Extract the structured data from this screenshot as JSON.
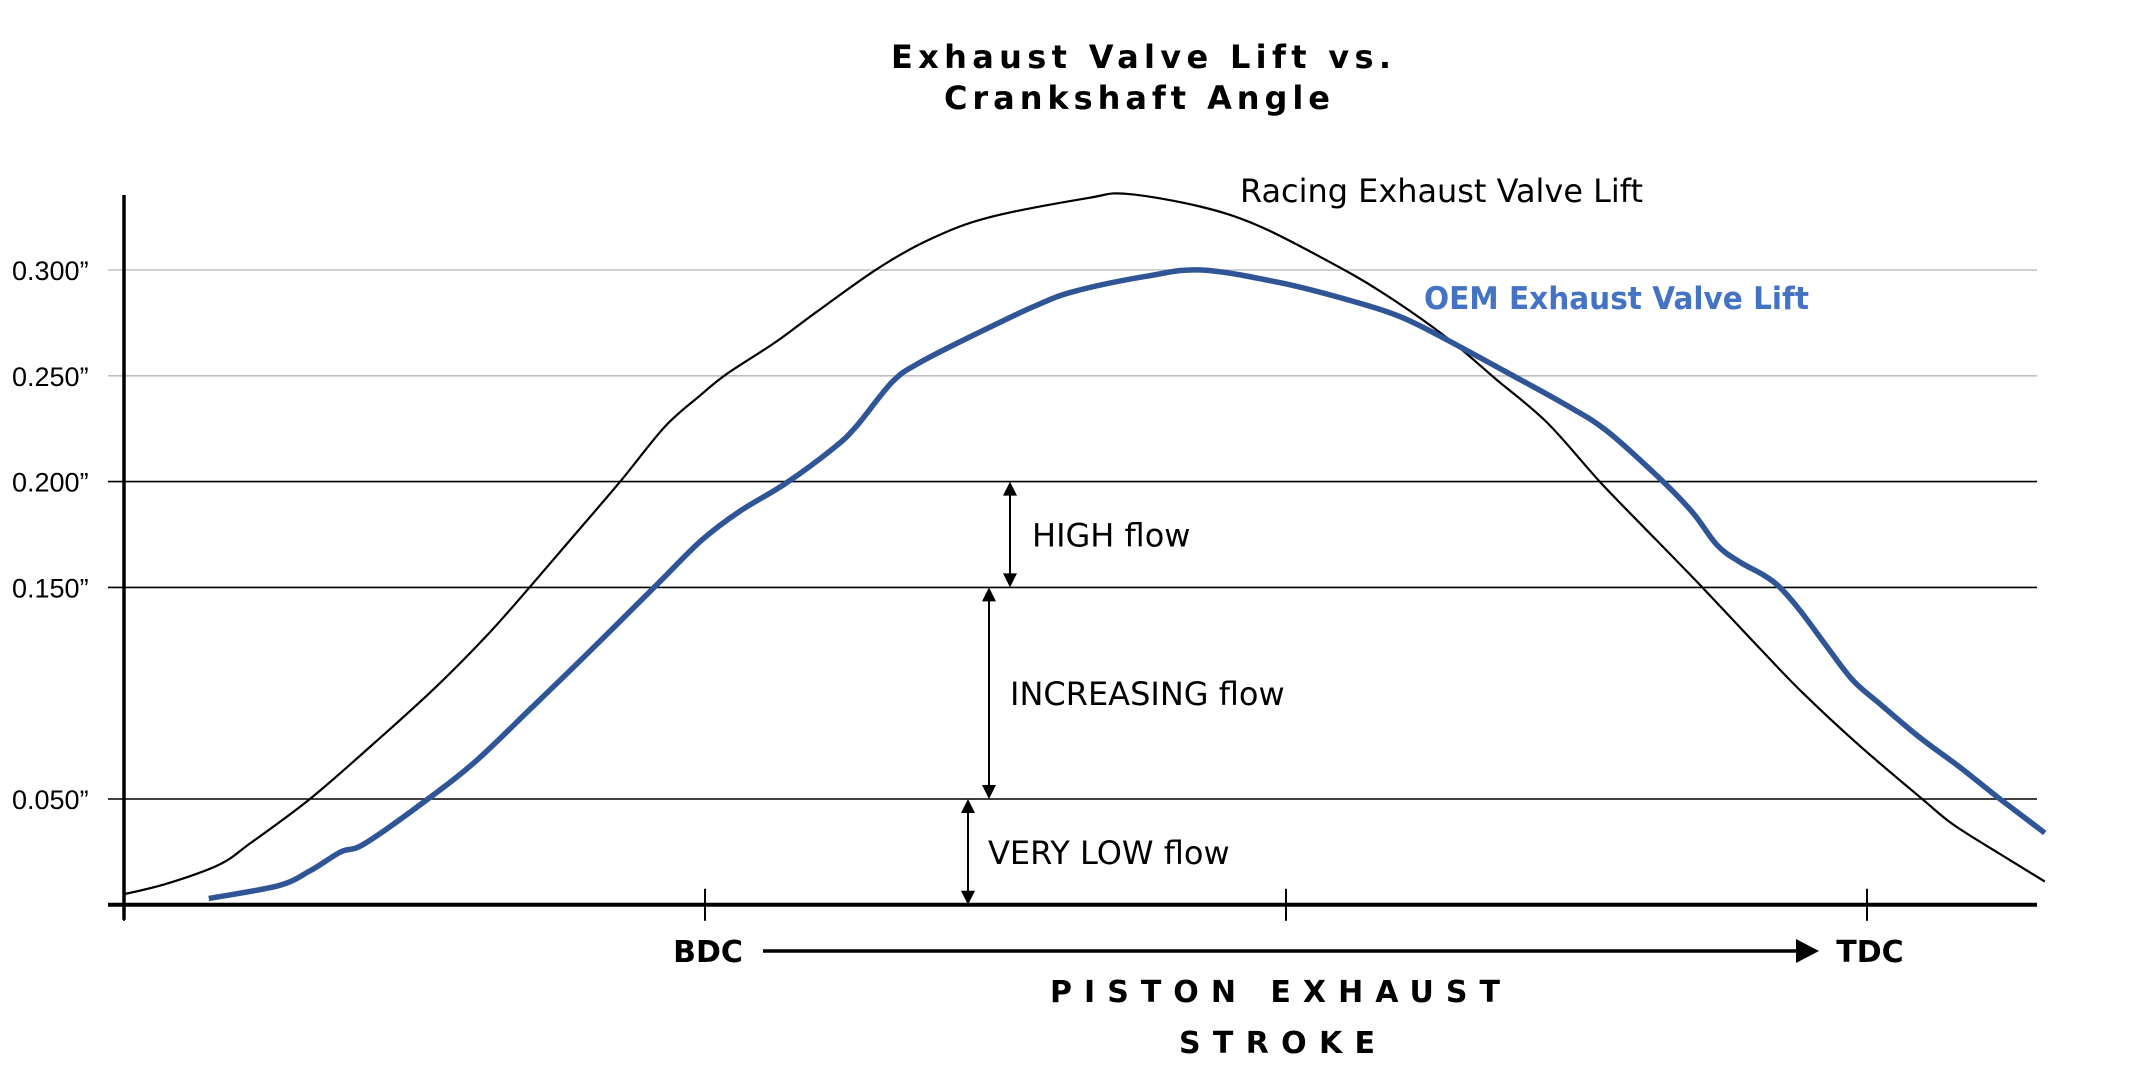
{
  "chart_data": {
    "type": "line",
    "title": [
      "Exhaust Valve Lift vs.",
      "Crankshaft Angle"
    ],
    "xlabel": [
      "PISTON EXHAUST",
      "STROKE"
    ],
    "ylabel": "",
    "x_units": "crankshaft position (tick index: 0 = start, 1 = BDC, 3 = TDC)",
    "y_units": "inches of valve lift",
    "xlim": [
      0,
      3.29
    ],
    "ylim": [
      0,
      0.34
    ],
    "x_ticks": [
      {
        "value": 0,
        "label": ""
      },
      {
        "value": 1,
        "label": "BDC"
      },
      {
        "value": 2,
        "label": ""
      },
      {
        "value": 3,
        "label": "TDC"
      }
    ],
    "y_ticks": [
      {
        "value": 0.05,
        "label": "0.050”",
        "grid": "dark"
      },
      {
        "value": 0.15,
        "label": "0.150”",
        "grid": "dark"
      },
      {
        "value": 0.2,
        "label": "0.200”",
        "grid": "dark"
      },
      {
        "value": 0.25,
        "label": "0.250”",
        "grid": "light"
      },
      {
        "value": 0.3,
        "label": "0.300”",
        "grid": "light"
      }
    ],
    "grid": true,
    "stroke_arrow": {
      "from": "BDC",
      "to": "TDC"
    },
    "series": [
      {
        "name": "Racing Exhaust Valve Lift",
        "color": "#000000",
        "label_color": "#000000",
        "x": [
          0.0,
          0.074,
          0.164,
          0.217,
          0.32,
          0.429,
          0.537,
          0.627,
          0.701,
          0.776,
          0.854,
          0.931,
          0.993,
          1.038,
          1.122,
          1.191,
          1.299,
          1.391,
          1.491,
          1.659,
          1.725,
          1.852,
          1.952,
          2.067,
          2.162,
          2.277,
          2.363,
          2.449,
          2.54,
          2.621,
          2.713,
          2.816,
          2.89,
          2.988,
          3.095,
          3.148,
          3.229,
          3.306
        ],
        "y": [
          0.005,
          0.01,
          0.019,
          0.029,
          0.05,
          0.076,
          0.103,
          0.128,
          0.151,
          0.175,
          0.2,
          0.226,
          0.241,
          0.251,
          0.266,
          0.28,
          0.301,
          0.315,
          0.325,
          0.334,
          0.336,
          0.33,
          0.321,
          0.305,
          0.29,
          0.268,
          0.248,
          0.228,
          0.2,
          0.177,
          0.151,
          0.121,
          0.1,
          0.075,
          0.05,
          0.038,
          0.024,
          0.011
        ]
      },
      {
        "name": "OEM Exhaust Valve Lift",
        "color": "#2F5597",
        "label_color": "#4472C4",
        "x": [
          0.146,
          0.265,
          0.32,
          0.373,
          0.415,
          0.523,
          0.606,
          0.701,
          0.795,
          0.916,
          0.993,
          1.06,
          1.138,
          1.222,
          1.26,
          1.322,
          1.368,
          1.468,
          1.568,
          1.637,
          1.759,
          1.855,
          1.99,
          2.105,
          2.196,
          2.277,
          2.391,
          2.477,
          2.552,
          2.649,
          2.701,
          2.742,
          2.781,
          2.821,
          2.85,
          2.885,
          2.931,
          2.976,
          3.022,
          3.091,
          3.16,
          3.229,
          3.306
        ],
        "y": [
          0.003,
          0.009,
          0.016,
          0.025,
          0.029,
          0.05,
          0.068,
          0.093,
          0.118,
          0.151,
          0.172,
          0.186,
          0.199,
          0.216,
          0.226,
          0.247,
          0.256,
          0.27,
          0.283,
          0.29,
          0.297,
          0.3,
          0.294,
          0.286,
          0.278,
          0.267,
          0.25,
          0.237,
          0.224,
          0.2,
          0.185,
          0.17,
          0.162,
          0.156,
          0.15,
          0.139,
          0.122,
          0.106,
          0.095,
          0.079,
          0.065,
          0.05,
          0.034
        ]
      }
    ],
    "annotations": [
      {
        "label": "HIGH flow",
        "y_from": 0.15,
        "y_to": 0.2
      },
      {
        "label": "INCREASING flow",
        "y_from": 0.05,
        "y_to": 0.15
      },
      {
        "label": "VERY LOW flow",
        "y_from": 0.0,
        "y_to": 0.05
      }
    ]
  }
}
